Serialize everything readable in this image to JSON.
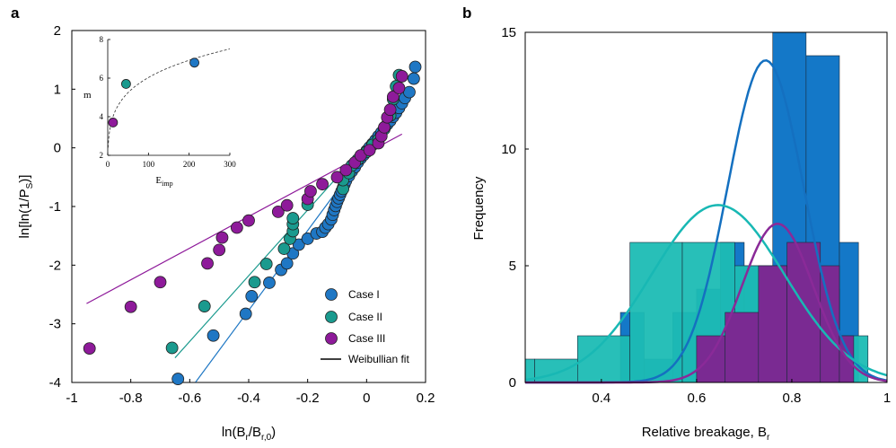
{
  "panels": {
    "a": "a",
    "b": "b"
  },
  "colors": {
    "case1": "#1f77c4",
    "case2": "#1a9a8e",
    "case3": "#8e1a9a",
    "fit": "#000000",
    "hist1": "#1478c8",
    "hist2": "#1cbcb4",
    "hist3": "#7a2a92",
    "kde1": "#1470c0",
    "kde2": "#18b8b4",
    "kde3": "#8a2a98"
  },
  "chart_data": [
    {
      "id": "weibull",
      "type": "scatter",
      "title": "",
      "xlabel": "ln(B_r/B_r,0)",
      "xlabel_main": "ln(B",
      "xlabel_sub1": "r",
      "xlabel_mid": "/B",
      "xlabel_sub2": "r,0",
      "xlabel_end": ")",
      "ylabel": "ln[ln(1/P_S)]",
      "ylabel_main": "ln[ln(1/P",
      "ylabel_sub": "S",
      "ylabel_end": ")]",
      "xlim": [
        -1.0,
        0.2
      ],
      "ylim": [
        -4,
        2
      ],
      "xticks": [
        -1,
        -0.8,
        -0.6,
        -0.4,
        -0.2,
        0,
        0.2
      ],
      "xtick_labels": [
        "-1",
        "-0.8",
        "-0.6",
        "-0.4",
        "-0.2",
        "0",
        "0.2"
      ],
      "yticks": [
        -4,
        -3,
        -2,
        -1,
        0,
        1,
        2
      ],
      "ytick_labels": [
        "-4",
        "-3",
        "-2",
        "-1",
        "0",
        "1",
        "2"
      ],
      "legend": [
        "Case I",
        "Case II",
        "Case III",
        "Weibullian fit"
      ],
      "legend_position": "bottom-right",
      "series": [
        {
          "name": "Case I",
          "color_key": "case1",
          "fit": {
            "slope": 6.8,
            "intercept": -0.05,
            "x_range": [
              -0.58,
              0.12
            ]
          },
          "points": [
            [
              -0.64,
              -3.94
            ],
            [
              -0.52,
              -3.2
            ],
            [
              -0.41,
              -2.83
            ],
            [
              -0.39,
              -2.53
            ],
            [
              -0.33,
              -2.3
            ],
            [
              -0.29,
              -2.08
            ],
            [
              -0.27,
              -1.97
            ],
            [
              -0.25,
              -1.8
            ],
            [
              -0.23,
              -1.65
            ],
            [
              -0.2,
              -1.55
            ],
            [
              -0.17,
              -1.46
            ],
            [
              -0.15,
              -1.43
            ],
            [
              -0.14,
              -1.36
            ],
            [
              -0.13,
              -1.3
            ],
            [
              -0.12,
              -1.22
            ],
            [
              -0.115,
              -1.14
            ],
            [
              -0.11,
              -1.06
            ],
            [
              -0.105,
              -0.99
            ],
            [
              -0.1,
              -0.92
            ],
            [
              -0.095,
              -0.86
            ],
            [
              -0.09,
              -0.8
            ],
            [
              -0.085,
              -0.74
            ],
            [
              -0.08,
              -0.68
            ],
            [
              -0.075,
              -0.62
            ],
            [
              -0.07,
              -0.56
            ],
            [
              -0.06,
              -0.48
            ],
            [
              -0.05,
              -0.4
            ],
            [
              -0.04,
              -0.33
            ],
            [
              -0.03,
              -0.25
            ],
            [
              -0.02,
              -0.18
            ],
            [
              -0.01,
              -0.12
            ],
            [
              0.0,
              -0.05
            ],
            [
              0.01,
              0.01
            ],
            [
              0.02,
              0.07
            ],
            [
              0.03,
              0.13
            ],
            [
              0.04,
              0.2
            ],
            [
              0.05,
              0.26
            ],
            [
              0.06,
              0.33
            ],
            [
              0.07,
              0.4
            ],
            [
              0.08,
              0.46
            ],
            [
              0.09,
              0.53
            ],
            [
              0.1,
              0.6
            ],
            [
              0.11,
              0.68
            ],
            [
              0.12,
              0.76
            ],
            [
              0.13,
              0.85
            ],
            [
              0.145,
              0.95
            ],
            [
              0.16,
              1.18
            ],
            [
              0.165,
              1.38
            ]
          ]
        },
        {
          "name": "Case II",
          "color_key": "case2",
          "fit": {
            "slope": 5.6,
            "intercept": 0.06,
            "x_range": [
              -0.65,
              0.12
            ]
          },
          "points": [
            [
              -0.66,
              -3.41
            ],
            [
              -0.55,
              -2.7
            ],
            [
              -0.38,
              -2.29
            ],
            [
              -0.34,
              -1.98
            ],
            [
              -0.28,
              -1.72
            ],
            [
              -0.26,
              -1.55
            ],
            [
              -0.25,
              -1.42
            ],
            [
              -0.25,
              -1.3
            ],
            [
              -0.25,
              -1.2
            ],
            [
              -0.2,
              -0.97
            ],
            [
              -0.08,
              -0.7
            ],
            [
              -0.08,
              -0.55
            ],
            [
              -0.06,
              -0.43
            ],
            [
              -0.05,
              -0.3
            ],
            [
              -0.03,
              -0.2
            ],
            [
              0.0,
              -0.07
            ],
            [
              0.02,
              0.05
            ],
            [
              0.04,
              0.14
            ],
            [
              0.06,
              0.32
            ],
            [
              0.08,
              0.55
            ],
            [
              0.09,
              0.83
            ],
            [
              0.1,
              1.05
            ],
            [
              0.11,
              1.24
            ]
          ]
        },
        {
          "name": "Case III",
          "color_key": "case3",
          "fit": {
            "slope": 2.7,
            "intercept": -0.09,
            "x_range": [
              -0.95,
              0.12
            ]
          },
          "points": [
            [
              -0.94,
              -3.42
            ],
            [
              -0.8,
              -2.71
            ],
            [
              -0.7,
              -2.29
            ],
            [
              -0.54,
              -1.97
            ],
            [
              -0.5,
              -1.74
            ],
            [
              -0.49,
              -1.53
            ],
            [
              -0.44,
              -1.36
            ],
            [
              -0.4,
              -1.24
            ],
            [
              -0.3,
              -1.09
            ],
            [
              -0.27,
              -0.98
            ],
            [
              -0.2,
              -0.87
            ],
            [
              -0.19,
              -0.74
            ],
            [
              -0.15,
              -0.62
            ],
            [
              -0.1,
              -0.5
            ],
            [
              -0.07,
              -0.38
            ],
            [
              -0.04,
              -0.25
            ],
            [
              -0.02,
              -0.13
            ],
            [
              0.01,
              -0.04
            ],
            [
              0.04,
              0.08
            ],
            [
              0.05,
              0.2
            ],
            [
              0.06,
              0.35
            ],
            [
              0.07,
              0.52
            ],
            [
              0.08,
              0.65
            ],
            [
              0.09,
              0.87
            ],
            [
              0.11,
              1.02
            ],
            [
              0.12,
              1.22
            ]
          ]
        }
      ],
      "inset": {
        "xlabel": "E_imp",
        "xlabel_main": "E",
        "xlabel_sub": "imp",
        "ylabel": "m",
        "xlim": [
          0,
          300
        ],
        "ylim": [
          2,
          8
        ],
        "xticks": [
          0,
          100,
          200,
          300
        ],
        "xtick_labels": [
          "0",
          "100",
          "200",
          "300"
        ],
        "yticks": [
          2,
          4,
          6,
          8
        ],
        "ytick_labels": [
          "2",
          "4",
          "6",
          "8"
        ],
        "points": [
          {
            "x": 13,
            "y": 3.7,
            "color_key": "case3"
          },
          {
            "x": 45,
            "y": 5.7,
            "color_key": "case2"
          },
          {
            "x": 213,
            "y": 6.8,
            "color_key": "case1"
          }
        ],
        "trend": {
          "type": "power",
          "a": 2.4,
          "b": 0.2,
          "x_range": [
            1,
            300
          ]
        }
      }
    },
    {
      "id": "histogram",
      "type": "bar",
      "title": "",
      "xlabel": "Relative breakage, B_r",
      "xlabel_main": "Relative breakage, B",
      "xlabel_sub": "r",
      "ylabel": "Frequency",
      "xlim": [
        0.24,
        1.0
      ],
      "ylim": [
        0,
        15
      ],
      "xticks": [
        0.4,
        0.6,
        0.8,
        1
      ],
      "xtick_labels": [
        "0.4",
        "0.6",
        "0.8",
        "1"
      ],
      "yticks": [
        0,
        5,
        10,
        15
      ],
      "ytick_labels": [
        "0",
        "5",
        "10",
        "15"
      ],
      "series": [
        {
          "name": "Case I",
          "color_key": "hist1",
          "bins": [
            [
              0.44,
              0.49,
              3
            ],
            [
              0.49,
              0.55,
              1
            ],
            [
              0.55,
              0.6,
              3
            ],
            [
              0.6,
              0.65,
              4
            ],
            [
              0.65,
              0.7,
              6
            ],
            [
              0.7,
              0.76,
              5
            ],
            [
              0.76,
              0.83,
              15
            ],
            [
              0.83,
              0.9,
              14
            ],
            [
              0.9,
              0.94,
              6
            ]
          ],
          "kde": {
            "peak": 13.8,
            "mean": 0.745,
            "sd": 0.08
          }
        },
        {
          "name": "Case II",
          "color_key": "hist2",
          "bins": [
            [
              0.24,
              0.26,
              1
            ],
            [
              0.26,
              0.35,
              1
            ],
            [
              0.35,
              0.46,
              2
            ],
            [
              0.46,
              0.57,
              6
            ],
            [
              0.57,
              0.68,
              6
            ],
            [
              0.68,
              0.79,
              5
            ],
            [
              0.79,
              0.9,
              4
            ],
            [
              0.9,
              0.96,
              2
            ]
          ],
          "kde": {
            "peak": 7.6,
            "mean": 0.645,
            "sd": 0.14
          }
        },
        {
          "name": "Case III",
          "color_key": "hist3",
          "bins": [
            [
              0.6,
              0.66,
              2
            ],
            [
              0.66,
              0.73,
              3
            ],
            [
              0.73,
              0.79,
              5
            ],
            [
              0.79,
              0.86,
              6
            ],
            [
              0.86,
              0.9,
              5
            ],
            [
              0.9,
              0.93,
              2
            ]
          ],
          "kde": {
            "peak": 6.8,
            "mean": 0.77,
            "sd": 0.075
          }
        }
      ]
    }
  ]
}
